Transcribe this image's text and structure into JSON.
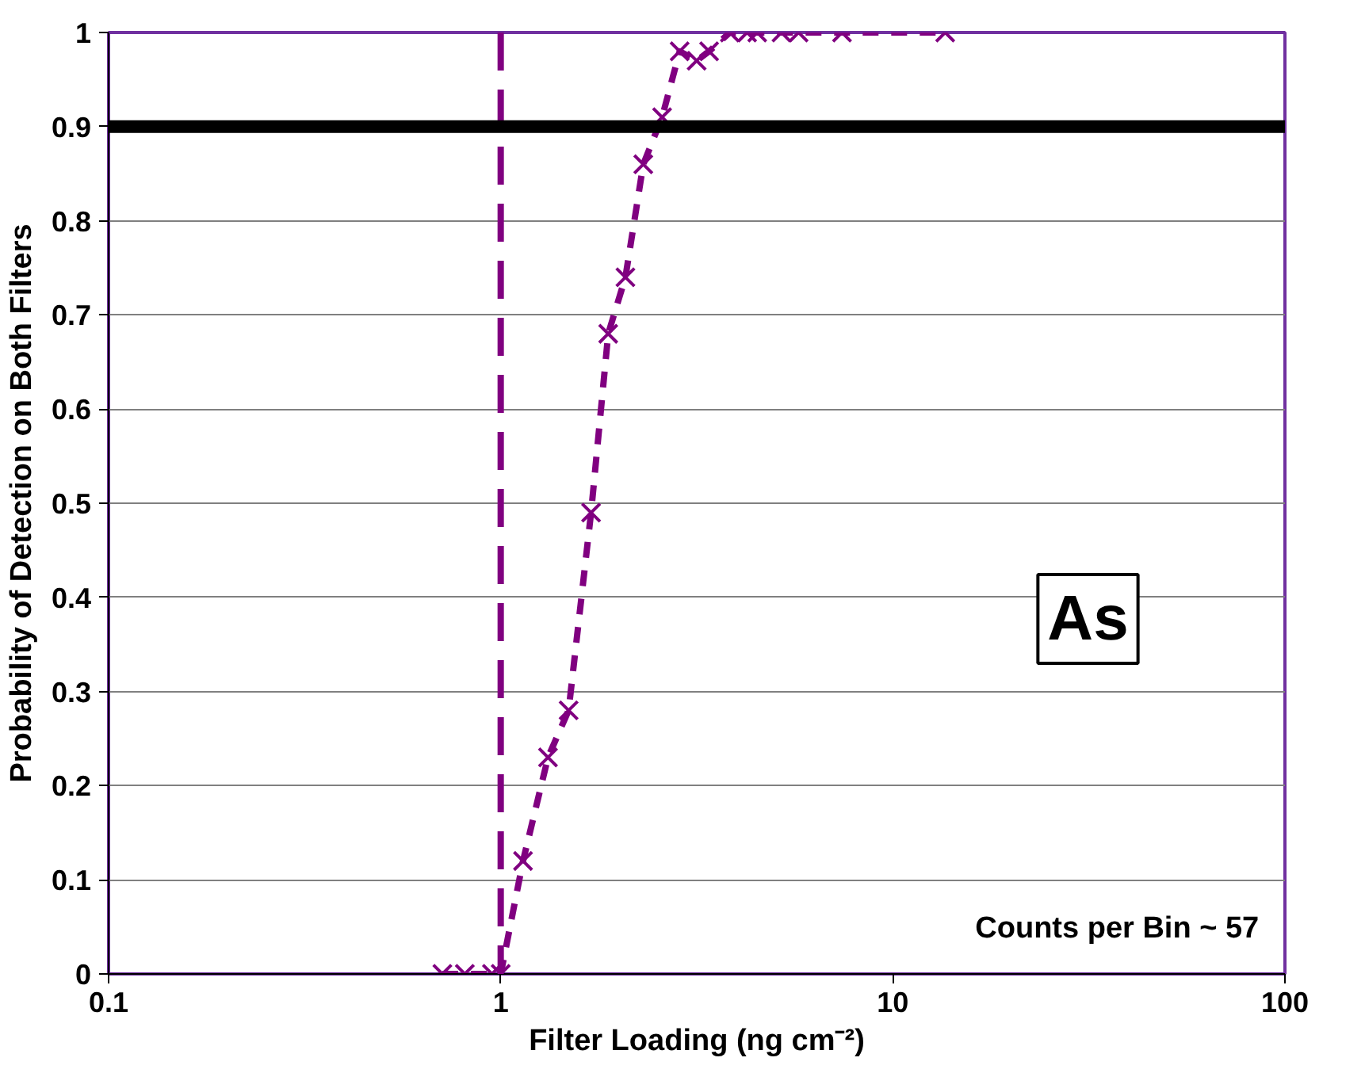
{
  "chart_data": {
    "type": "line",
    "xlabel": "Filter Loading (ng cm⁻²)",
    "ylabel": "Probability of Detection on Both Filters",
    "log": "x",
    "grid": "y",
    "marker": "cross",
    "line_style": "dashed",
    "xlim": [
      0.1,
      100
    ],
    "xticks": [
      0.1,
      1,
      10,
      100
    ],
    "ylim": [
      0,
      1
    ],
    "yticks": [
      0,
      0.1,
      0.2,
      0.3,
      0.4,
      0.5,
      0.6,
      0.7,
      0.8,
      0.9,
      1
    ],
    "series": [
      {
        "color": "#800080",
        "x": [
          0.71,
          0.81,
          0.95,
          1.0,
          1.14,
          1.32,
          1.49,
          1.7,
          1.88,
          2.08,
          2.31,
          2.58,
          2.86,
          3.16,
          3.4,
          3.84,
          4.25,
          4.51,
          5.2,
          5.75,
          7.42,
          13.6
        ],
        "values": [
          0,
          0,
          0,
          0,
          0.12,
          0.23,
          0.28,
          0.49,
          0.68,
          0.74,
          0.86,
          0.91,
          0.98,
          0.97,
          0.98,
          1,
          1,
          1,
          1,
          1,
          1,
          1
        ]
      }
    ],
    "ref_lines": [
      {
        "axis": "x",
        "value": 1,
        "color": "#800080",
        "line_style": "dashed"
      },
      {
        "axis": "y",
        "value": 0.9,
        "color": "#000000",
        "line_style": "solid"
      }
    ],
    "annotations": [
      "As",
      "Counts per Bin  ~ 57"
    ]
  }
}
